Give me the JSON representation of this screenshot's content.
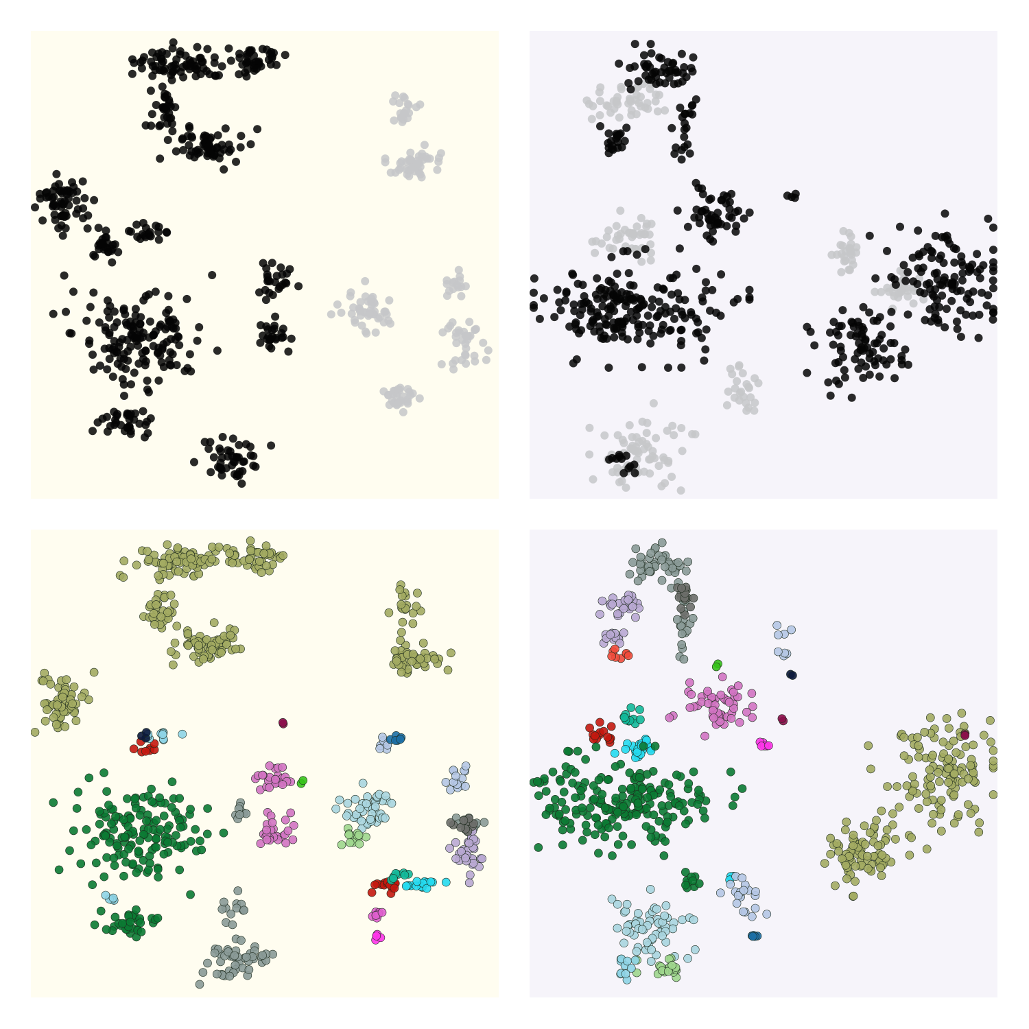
{
  "chart_data": [
    {
      "type": "scatter",
      "panel": "top-left",
      "background": "#fffdf0",
      "xlim": [
        0,
        100
      ],
      "ylim": [
        0,
        100
      ],
      "grid": false,
      "series": [
        {
          "color": "#050505",
          "clusters": [
            {
              "cx": 32,
              "cy": 7,
              "rx": 10,
              "ry": 3.5,
              "n": 70
            },
            {
              "cx": 48,
              "cy": 6,
              "rx": 6,
              "ry": 3,
              "n": 40
            },
            {
              "cx": 28,
              "cy": 17,
              "rx": 3,
              "ry": 6,
              "n": 30
            },
            {
              "cx": 38,
              "cy": 25,
              "rx": 8,
              "ry": 4,
              "n": 60
            },
            {
              "cx": 7,
              "cy": 37,
              "rx": 5,
              "ry": 6,
              "n": 60
            },
            {
              "cx": 16,
              "cy": 46,
              "rx": 3,
              "ry": 3,
              "n": 25
            },
            {
              "cx": 25,
              "cy": 43,
              "rx": 5,
              "ry": 1.5,
              "n": 20
            },
            {
              "cx": 23,
              "cy": 65,
              "rx": 14,
              "ry": 10,
              "n": 150
            },
            {
              "cx": 21,
              "cy": 84,
              "rx": 6,
              "ry": 3,
              "n": 35
            },
            {
              "cx": 43,
              "cy": 92,
              "rx": 7,
              "ry": 4,
              "n": 45
            },
            {
              "cx": 52,
              "cy": 53,
              "rx": 4,
              "ry": 4,
              "n": 25
            },
            {
              "cx": 51,
              "cy": 65,
              "rx": 4,
              "ry": 3.5,
              "n": 25
            }
          ]
        },
        {
          "color": "#c6c7c9",
          "clusters": [
            {
              "cx": 82,
              "cy": 28,
              "rx": 6,
              "ry": 4,
              "n": 45
            },
            {
              "cx": 80,
              "cy": 17,
              "rx": 3,
              "ry": 4,
              "n": 20
            },
            {
              "cx": 72,
              "cy": 60,
              "rx": 6,
              "ry": 5,
              "n": 45
            },
            {
              "cx": 93,
              "cy": 68,
              "rx": 4,
              "ry": 6,
              "n": 35
            },
            {
              "cx": 78,
              "cy": 78,
              "rx": 5,
              "ry": 3,
              "n": 30
            },
            {
              "cx": 90,
              "cy": 54,
              "rx": 2.5,
              "ry": 3,
              "n": 15
            }
          ]
        }
      ]
    },
    {
      "type": "scatter",
      "panel": "top-right",
      "background": "#f6f4fa",
      "xlim": [
        0,
        100
      ],
      "ylim": [
        0,
        100
      ],
      "grid": false,
      "series": [
        {
          "color": "#c6c7c9",
          "clusters": [
            {
              "cx": 20,
              "cy": 15,
              "rx": 8,
              "ry": 4,
              "n": 45
            },
            {
              "cx": 21,
              "cy": 44,
              "rx": 7,
              "ry": 5,
              "n": 40
            },
            {
              "cx": 24,
              "cy": 90,
              "rx": 10,
              "ry": 8,
              "n": 70
            },
            {
              "cx": 46,
              "cy": 77,
              "rx": 4,
              "ry": 5,
              "n": 25
            },
            {
              "cx": 79,
              "cy": 55,
              "rx": 4,
              "ry": 4,
              "n": 30
            },
            {
              "cx": 68,
              "cy": 48,
              "rx": 4,
              "ry": 4,
              "n": 25
            }
          ]
        },
        {
          "color": "#050505",
          "clusters": [
            {
              "cx": 28,
              "cy": 8,
              "rx": 8,
              "ry": 4,
              "n": 45
            },
            {
              "cx": 19,
              "cy": 23,
              "rx": 3,
              "ry": 3,
              "n": 20
            },
            {
              "cx": 33,
              "cy": 20,
              "rx": 2,
              "ry": 10,
              "n": 25
            },
            {
              "cx": 40,
              "cy": 39,
              "rx": 7,
              "ry": 5,
              "n": 50
            },
            {
              "cx": 21,
              "cy": 59,
              "rx": 20,
              "ry": 10,
              "n": 200
            },
            {
              "cx": 71,
              "cy": 68,
              "rx": 9,
              "ry": 8,
              "n": 80
            },
            {
              "cx": 88,
              "cy": 53,
              "rx": 12,
              "ry": 12,
              "n": 120
            },
            {
              "cx": 20,
              "cy": 92,
              "rx": 2.5,
              "ry": 2.5,
              "n": 12
            },
            {
              "cx": 56,
              "cy": 35,
              "rx": 1,
              "ry": 1,
              "n": 4
            }
          ]
        }
      ]
    },
    {
      "type": "scatter",
      "panel": "bottom-left",
      "background": "#fffdf0",
      "xlim": [
        0,
        100
      ],
      "ylim": [
        0,
        100
      ],
      "grid": false,
      "series": [
        {
          "color": "#a3ab62",
          "clusters": [
            {
              "cx": 32,
              "cy": 7,
              "rx": 10,
              "ry": 3.5,
              "n": 70
            },
            {
              "cx": 48,
              "cy": 6,
              "rx": 6,
              "ry": 3,
              "n": 40
            },
            {
              "cx": 28,
              "cy": 17,
              "rx": 3,
              "ry": 6,
              "n": 30
            },
            {
              "cx": 38,
              "cy": 25,
              "rx": 8,
              "ry": 4,
              "n": 60
            },
            {
              "cx": 7,
              "cy": 37,
              "rx": 5,
              "ry": 6,
              "n": 60
            },
            {
              "cx": 82,
              "cy": 28,
              "rx": 6,
              "ry": 4,
              "n": 45
            },
            {
              "cx": 80,
              "cy": 17,
              "rx": 3,
              "ry": 4,
              "n": 20
            }
          ]
        },
        {
          "color": "#0b7a33",
          "clusters": [
            {
              "cx": 23,
              "cy": 65,
              "rx": 14,
              "ry": 10,
              "n": 150
            },
            {
              "cx": 21,
              "cy": 84,
              "rx": 6,
              "ry": 3,
              "n": 35
            }
          ]
        },
        {
          "color": "#8a9a97",
          "clusters": [
            {
              "cx": 43,
              "cy": 92,
              "rx": 7,
              "ry": 4,
              "n": 45
            },
            {
              "cx": 44,
              "cy": 81,
              "rx": 3,
              "ry": 3,
              "n": 12
            },
            {
              "cx": 45,
              "cy": 60,
              "rx": 1.5,
              "ry": 2,
              "n": 8
            },
            {
              "cx": 93,
              "cy": 63,
              "rx": 3,
              "ry": 2,
              "n": 15
            }
          ]
        },
        {
          "color": "#d173c2",
          "clusters": [
            {
              "cx": 52,
              "cy": 53,
              "rx": 4,
              "ry": 4,
              "n": 25
            },
            {
              "cx": 51,
              "cy": 65,
              "rx": 4,
              "ry": 3.5,
              "n": 25
            }
          ]
        },
        {
          "color": "#a8d5df",
          "clusters": [
            {
              "cx": 72,
              "cy": 60,
              "rx": 6,
              "ry": 5,
              "n": 45
            }
          ]
        },
        {
          "color": "#9ed68d",
          "clusters": [
            {
              "cx": 69,
              "cy": 66,
              "rx": 3,
              "ry": 2,
              "n": 12
            }
          ]
        },
        {
          "color": "#b9a9d3",
          "clusters": [
            {
              "cx": 93,
              "cy": 69,
              "rx": 4,
              "ry": 5,
              "n": 30
            }
          ]
        },
        {
          "color": "#b5c7e4",
          "clusters": [
            {
              "cx": 91,
              "cy": 53,
              "rx": 2.5,
              "ry": 3,
              "n": 15
            },
            {
              "cx": 75,
              "cy": 45,
              "rx": 2,
              "ry": 2,
              "n": 8
            }
          ]
        },
        {
          "color": "#25daf0",
          "clusters": [
            {
              "cx": 84,
              "cy": 76,
              "rx": 4,
              "ry": 1.5,
              "n": 15
            }
          ]
        },
        {
          "color": "#c4180f",
          "clusters": [
            {
              "cx": 76,
              "cy": 76,
              "rx": 3,
              "ry": 1.5,
              "n": 15
            },
            {
              "cx": 24,
              "cy": 47,
              "rx": 2,
              "ry": 1.5,
              "n": 8
            }
          ]
        },
        {
          "color": "#13b99a",
          "clusters": [
            {
              "cx": 79,
              "cy": 74,
              "rx": 2,
              "ry": 1,
              "n": 8
            }
          ]
        },
        {
          "color": "#8ed4e6",
          "clusters": [
            {
              "cx": 28,
              "cy": 44,
              "rx": 4,
              "ry": 1.2,
              "n": 10
            },
            {
              "cx": 17,
              "cy": 79,
              "rx": 1.5,
              "ry": 1.5,
              "n": 5
            }
          ]
        },
        {
          "color": "#1d6fa5",
          "clusters": [
            {
              "cx": 78,
              "cy": 45,
              "rx": 1.5,
              "ry": 1.5,
              "n": 6
            }
          ]
        },
        {
          "color": "#e05fcf",
          "clusters": [
            {
              "cx": 74,
              "cy": 83,
              "rx": 1.5,
              "ry": 3,
              "n": 8
            }
          ]
        },
        {
          "color": "#ff35ea",
          "clusters": [
            {
              "cx": 74,
              "cy": 87,
              "rx": 1,
              "ry": 1,
              "n": 4
            }
          ]
        },
        {
          "color": "#8b0f4a",
          "clusters": [
            {
              "cx": 54,
              "cy": 41,
              "rx": 0.5,
              "ry": 0.5,
              "n": 2
            }
          ]
        },
        {
          "color": "#36c21a",
          "clusters": [
            {
              "cx": 58,
              "cy": 54,
              "rx": 0.5,
              "ry": 0.5,
              "n": 2
            }
          ]
        },
        {
          "color": "#0c1a3c",
          "clusters": [
            {
              "cx": 24,
              "cy": 44,
              "rx": 0.8,
              "ry": 0.8,
              "n": 3
            }
          ]
        },
        {
          "color": "#6d6e6a",
          "clusters": [
            {
              "cx": 93,
              "cy": 63,
              "rx": 3,
              "ry": 1.5,
              "n": 10
            }
          ]
        }
      ]
    },
    {
      "type": "scatter",
      "panel": "bottom-right",
      "background": "#f6f4fa",
      "xlim": [
        0,
        100
      ],
      "ylim": [
        0,
        100
      ],
      "grid": false,
      "series": [
        {
          "color": "#8a9a97",
          "clusters": [
            {
              "cx": 28,
              "cy": 8,
              "rx": 7,
              "ry": 4,
              "n": 45
            },
            {
              "cx": 33,
              "cy": 20,
              "rx": 1.5,
              "ry": 8,
              "n": 20
            }
          ]
        },
        {
          "color": "#6d6e6a",
          "clusters": [
            {
              "cx": 34,
              "cy": 15,
              "rx": 3,
              "ry": 3,
              "n": 15
            }
          ]
        },
        {
          "color": "#b9a9d3",
          "clusters": [
            {
              "cx": 20,
              "cy": 16,
              "rx": 5,
              "ry": 3,
              "n": 25
            },
            {
              "cx": 18,
              "cy": 23,
              "rx": 3,
              "ry": 2,
              "n": 12
            }
          ]
        },
        {
          "color": "#f04b3c",
          "clusters": [
            {
              "cx": 19,
              "cy": 27,
              "rx": 2,
              "ry": 1.5,
              "n": 8
            }
          ]
        },
        {
          "color": "#d173c2",
          "clusters": [
            {
              "cx": 39,
              "cy": 38,
              "rx": 7,
              "ry": 5,
              "n": 50
            }
          ]
        },
        {
          "color": "#13b99a",
          "clusters": [
            {
              "cx": 22,
              "cy": 40,
              "rx": 3,
              "ry": 2,
              "n": 12
            }
          ]
        },
        {
          "color": "#c4180f",
          "clusters": [
            {
              "cx": 15,
              "cy": 44,
              "rx": 3,
              "ry": 3,
              "n": 15
            }
          ]
        },
        {
          "color": "#25daf0",
          "clusters": [
            {
              "cx": 23,
              "cy": 47,
              "rx": 4,
              "ry": 3,
              "n": 20
            },
            {
              "cx": 43,
              "cy": 74,
              "rx": 1,
              "ry": 1,
              "n": 3
            }
          ]
        },
        {
          "color": "#0b7a33",
          "clusters": [
            {
              "cx": 21,
              "cy": 58,
              "rx": 19,
              "ry": 9,
              "n": 200
            },
            {
              "cx": 35,
              "cy": 75,
              "rx": 2,
              "ry": 2,
              "n": 10
            }
          ]
        },
        {
          "color": "#a3ab62",
          "clusters": [
            {
              "cx": 71,
              "cy": 68,
              "rx": 9,
              "ry": 8,
              "n": 80
            },
            {
              "cx": 88,
              "cy": 53,
              "rx": 12,
              "ry": 12,
              "n": 120
            }
          ]
        },
        {
          "color": "#b5c7e4",
          "clusters": [
            {
              "cx": 54,
              "cy": 24,
              "rx": 1.5,
              "ry": 3,
              "n": 8
            },
            {
              "cx": 46,
              "cy": 78,
              "rx": 4,
              "ry": 4,
              "n": 20
            }
          ]
        },
        {
          "color": "#a8d5df",
          "clusters": [
            {
              "cx": 26,
              "cy": 85,
              "rx": 8,
              "ry": 7,
              "n": 60
            }
          ]
        },
        {
          "color": "#9ed68d",
          "clusters": [
            {
              "cx": 29,
              "cy": 94,
              "rx": 5,
              "ry": 2,
              "n": 20
            }
          ]
        },
        {
          "color": "#8ed4e6",
          "clusters": [
            {
              "cx": 20,
              "cy": 93,
              "rx": 2,
              "ry": 2.5,
              "n": 10
            }
          ]
        },
        {
          "color": "#1d6fa5",
          "clusters": [
            {
              "cx": 48,
              "cy": 87,
              "rx": 1,
              "ry": 1,
              "n": 5
            }
          ]
        },
        {
          "color": "#ff35ea",
          "clusters": [
            {
              "cx": 50,
              "cy": 46,
              "rx": 2,
              "ry": 0.8,
              "n": 6
            }
          ]
        },
        {
          "color": "#8b0f4a",
          "clusters": [
            {
              "cx": 54,
              "cy": 41,
              "rx": 0.5,
              "ry": 0.5,
              "n": 2
            },
            {
              "cx": 93,
              "cy": 44,
              "rx": 0.5,
              "ry": 0.5,
              "n": 2
            }
          ]
        },
        {
          "color": "#0c1a3c",
          "clusters": [
            {
              "cx": 56,
              "cy": 31,
              "rx": 0.5,
              "ry": 0.5,
              "n": 2
            }
          ]
        },
        {
          "color": "#36c21a",
          "clusters": [
            {
              "cx": 40,
              "cy": 29,
              "rx": 0.5,
              "ry": 0.5,
              "n": 2
            }
          ]
        }
      ]
    }
  ]
}
